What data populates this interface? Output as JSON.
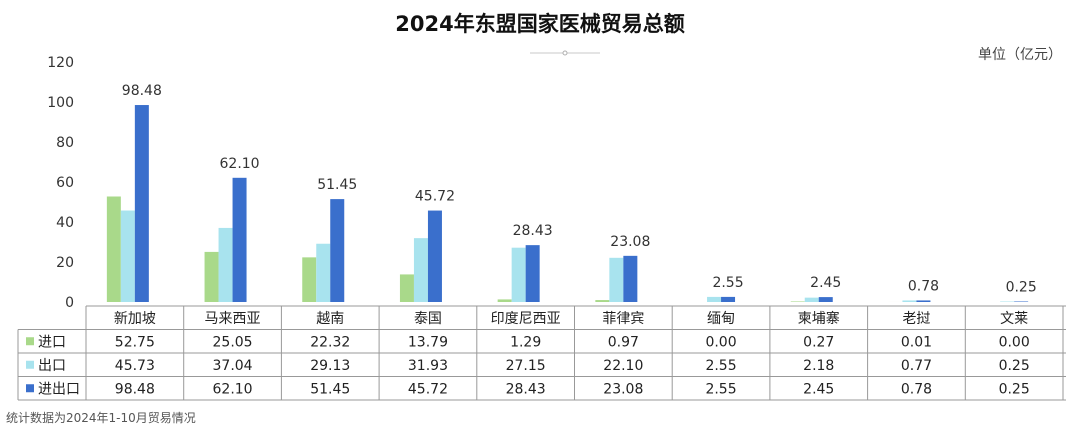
{
  "title": "2024年东盟国家医械贸易总额",
  "unit": "单位（亿元）",
  "footnote": "统计数据为2024年1-10月贸易情况",
  "colors": {
    "import": "#a9d98a",
    "export": "#a8e3ee",
    "total": "#3a6fcc"
  },
  "chart_data": {
    "type": "bar",
    "categories": [
      "新加坡",
      "马来西亚",
      "越南",
      "泰国",
      "印度尼西亚",
      "菲律宾",
      "缅甸",
      "柬埔寨",
      "老挝",
      "文莱"
    ],
    "series": [
      {
        "name": "进口",
        "values": [
          52.75,
          25.05,
          22.32,
          13.79,
          1.29,
          0.97,
          0.0,
          0.27,
          0.01,
          0.0
        ]
      },
      {
        "name": "出口",
        "values": [
          45.73,
          37.04,
          29.13,
          31.93,
          27.15,
          22.1,
          2.55,
          2.18,
          0.77,
          0.25
        ]
      },
      {
        "name": "进出口",
        "values": [
          98.48,
          62.1,
          51.45,
          45.72,
          28.43,
          23.08,
          2.55,
          2.45,
          0.78,
          0.25
        ]
      }
    ],
    "table_values": [
      [
        "52.75",
        "25.05",
        "22.32",
        "13.79",
        "1.29",
        "0.97",
        "0.00",
        "0.27",
        "0.01",
        "0.00"
      ],
      [
        "45.73",
        "37.04",
        "29.13",
        "31.93",
        "27.15",
        "22.10",
        "2.55",
        "2.18",
        "0.77",
        "0.25"
      ],
      [
        "98.48",
        "62.10",
        "51.45",
        "45.72",
        "28.43",
        "23.08",
        "2.55",
        "2.45",
        "0.78",
        "0.25"
      ]
    ],
    "total_labels": [
      "98.48",
      "62.10",
      "51.45",
      "45.72",
      "28.43",
      "23.08",
      "2.55",
      "2.45",
      "0.78",
      "0.25"
    ],
    "ylim": [
      0,
      120
    ],
    "yticks": [
      0,
      20,
      40,
      60,
      80,
      100,
      120
    ],
    "grid": false,
    "legend": "table"
  }
}
